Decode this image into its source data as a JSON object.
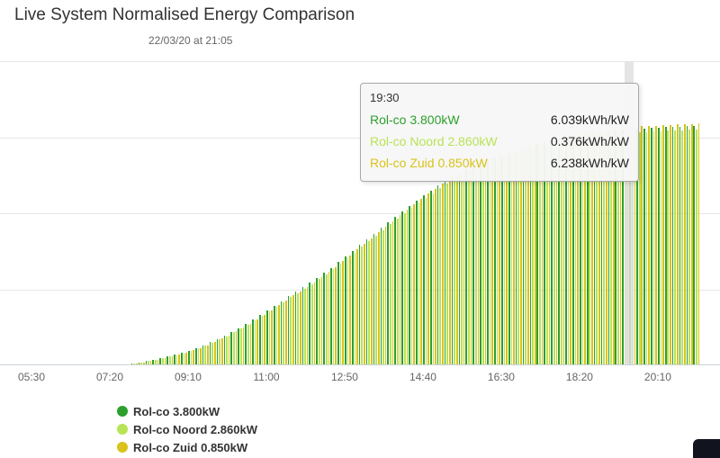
{
  "header": {
    "title": "Live System Normalised Energy Comparison",
    "subtitle": "22/03/20 at 21:05"
  },
  "tooltip": {
    "time": "19:30",
    "rows": [
      {
        "label": "Rol-co 3.800kW",
        "value": "6.039kWh/kW"
      },
      {
        "label": "Rol-co Noord 2.860kW",
        "value": "0.376kWh/kW"
      },
      {
        "label": "Rol-co Zuid 0.850kW",
        "value": "6.238kWh/kW"
      }
    ]
  },
  "legend": {
    "items": [
      {
        "label": "Rol-co 3.800kW"
      },
      {
        "label": "Rol-co Noord 2.860kW"
      },
      {
        "label": "Rol-co Zuid 0.850kW"
      }
    ]
  },
  "chart_data": {
    "type": "bar",
    "title": "Live System Normalised Energy Comparison",
    "subtitle": "22/03/20 at 21:05",
    "unit": "kWh/kW",
    "ylim": [
      0,
      8
    ],
    "grid": "horizontal",
    "legend_position": "bottom-left",
    "x_ticks": [
      "05:30",
      "07:20",
      "09:10",
      "11:00",
      "12:50",
      "14:40",
      "16:30",
      "18:20",
      "20:10"
    ],
    "crosshair_time": "19:30",
    "series": [
      {
        "name": "Rol-co 3.800kW",
        "color": "#2CA02C",
        "value_at_crosshair": 6.039
      },
      {
        "name": "Rol-co Noord 2.860kW",
        "color": "#B8E356",
        "value_at_crosshair": 0.376
      },
      {
        "name": "Rol-co Zuid 0.850kW",
        "color": "#D9C31B",
        "value_at_crosshair": 6.238
      }
    ],
    "envelope": {
      "times_hours": [
        5.0,
        5.5,
        6.0,
        6.5,
        7.0,
        7.5,
        7.75,
        8.0,
        8.5,
        9.0,
        9.5,
        10.0,
        10.5,
        11.0,
        11.5,
        12.0,
        12.5,
        13.0,
        13.5,
        14.0,
        14.5,
        15.0,
        15.5,
        16.0,
        16.5,
        17.0,
        17.5,
        18.0,
        18.5,
        19.0,
        19.5,
        20.0,
        20.5,
        21.0,
        21.083
      ],
      "values_kwh_per_kw": [
        0,
        0,
        0,
        0,
        0,
        0,
        0.01,
        0.05,
        0.16,
        0.3,
        0.5,
        0.76,
        1.06,
        1.42,
        1.8,
        2.15,
        2.55,
        3.0,
        3.45,
        3.9,
        4.33,
        4.72,
        5.06,
        5.36,
        5.5,
        5.72,
        5.88,
        6.0,
        6.09,
        6.16,
        6.21,
        6.24,
        6.27,
        6.29,
        6.3
      ]
    }
  }
}
